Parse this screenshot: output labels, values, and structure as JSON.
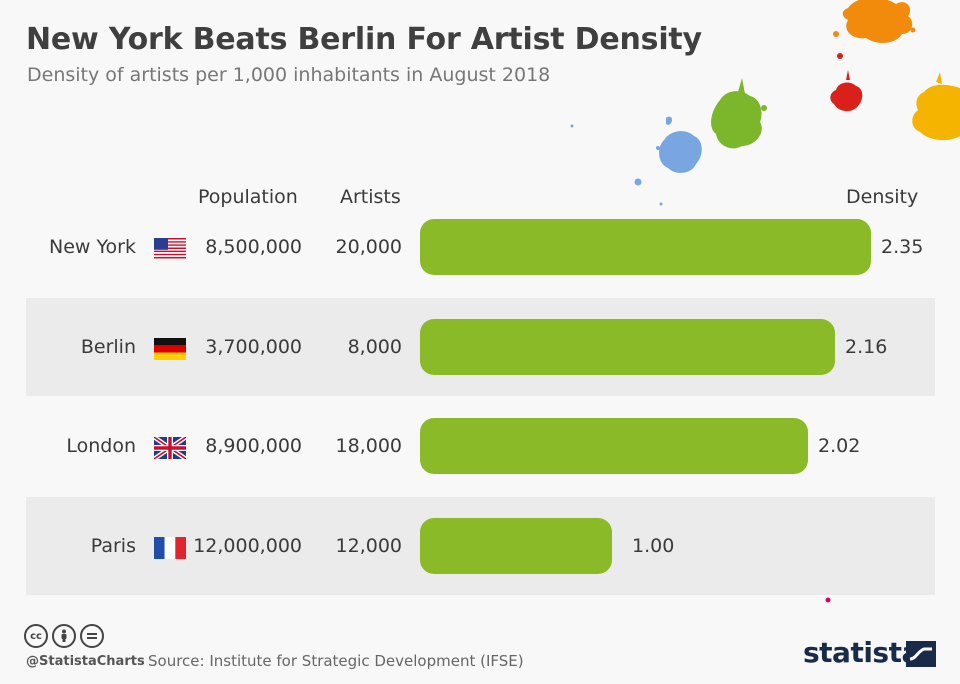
{
  "title": "New York Beats Berlin For Artist Density",
  "subtitle": "Density of artists per 1,000 inhabitants in August 2018",
  "columns": {
    "population": "Population",
    "artists": "Artists",
    "density": "Density"
  },
  "colors": {
    "bar": "#8aba27",
    "row_shade": "#ebebeb",
    "background": "#f8f8f8"
  },
  "chart_data": {
    "type": "bar",
    "orientation": "horizontal",
    "title": "New York Beats Berlin For Artist Density",
    "subtitle": "Density of artists per 1,000 inhabitants in August 2018",
    "categories": [
      "New York",
      "Berlin",
      "London",
      "Paris"
    ],
    "values": [
      2.35,
      2.16,
      2.02,
      1.0
    ],
    "value_labels": [
      "2.35",
      "2.16",
      "2.02",
      "1.00"
    ],
    "xlim": [
      0,
      2.35
    ],
    "grid": false,
    "legend": "none",
    "rows": [
      {
        "city": "New York",
        "flag": "us-flag-icon",
        "population": "8,500,000",
        "artists": "20,000",
        "density": 2.35,
        "density_label": "2.35"
      },
      {
        "city": "Berlin",
        "flag": "germany-flag-icon",
        "population": "3,700,000",
        "artists": "8,000",
        "density": 2.16,
        "density_label": "2.16"
      },
      {
        "city": "London",
        "flag": "uk-flag-icon",
        "population": "8,900,000",
        "artists": "18,000",
        "density": 2.02,
        "density_label": "2.02"
      },
      {
        "city": "Paris",
        "flag": "france-flag-icon",
        "population": "12,000,000",
        "artists": "12,000",
        "density": 1.0,
        "density_label": "1.00"
      }
    ]
  },
  "footer": {
    "handle": "@StatistaCharts",
    "source": "Source: Institute for Strategic Development (IFSE)",
    "brand": "statista",
    "license_icons": [
      "creative-commons-icon",
      "attribution-icon",
      "no-derivatives-icon"
    ]
  }
}
